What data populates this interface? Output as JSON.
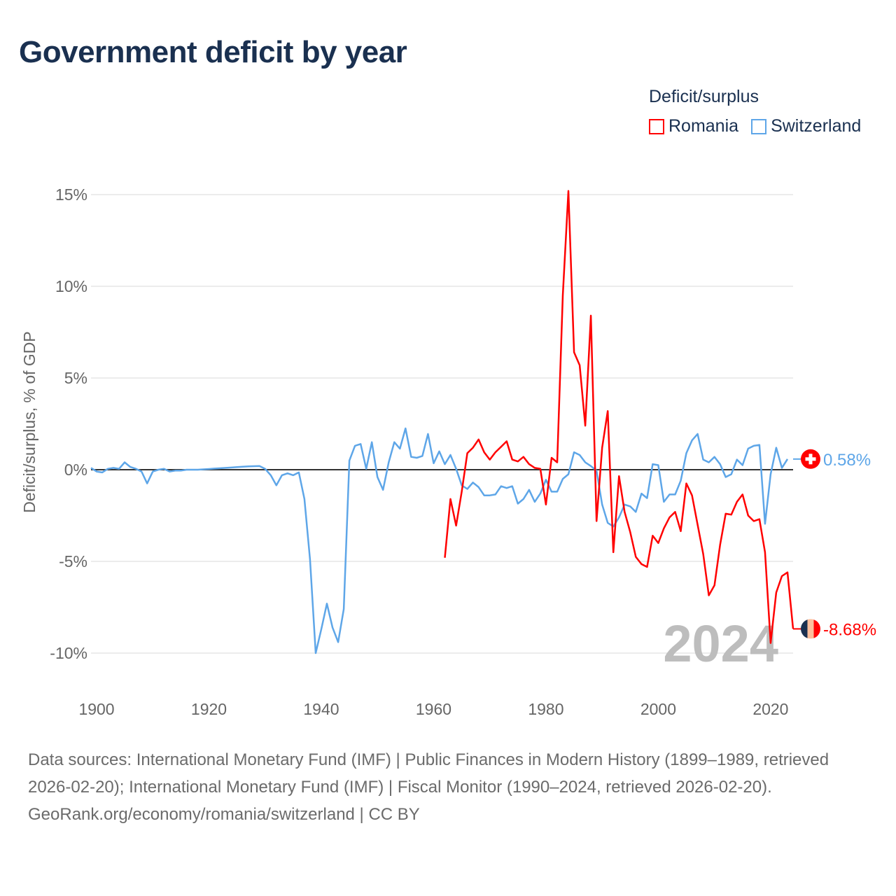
{
  "title": "Government deficit by year",
  "footer": {
    "sources": "Data sources: International Monetary Fund (IMF) | Public Finances in Modern History (1899–1989, retrieved 2026-02-20); International Monetary Fund (IMF) | Fiscal Monitor (1990–2024, retrieved 2026-02-20).",
    "attribution": "GeoRank.org/economy/romania/switzerland | CC BY"
  },
  "chart_data": {
    "type": "line",
    "title": "Government deficit by year",
    "ylabel": "Deficit/surplus, % of GDP",
    "xlabel": "",
    "xlim": [
      1899,
      2024
    ],
    "ylim": [
      -11.5,
      15.5
    ],
    "xticks": [
      1900,
      1920,
      1940,
      1960,
      1980,
      2000,
      2020
    ],
    "xtick_labels": [
      "1900",
      "1920",
      "1940",
      "1960",
      "1980",
      "2000",
      "2020"
    ],
    "yticks": [
      -10,
      -5,
      0,
      5,
      10,
      15
    ],
    "ytick_labels": [
      "-10%",
      "-5%",
      "0%",
      "5%",
      "10%",
      "15%"
    ],
    "grid": true,
    "legend_title": "Deficit/surplus",
    "legend_position": "top-right",
    "year_label": "2024",
    "series": [
      {
        "name": "Romania",
        "color": "#ff0000",
        "end_label": "-8.68%",
        "start_year": 1962,
        "values": [
          -4.8,
          -1.6,
          -3.05,
          -1.2,
          0.9,
          1.2,
          1.65,
          0.95,
          0.55,
          0.95,
          1.25,
          1.55,
          0.55,
          0.45,
          0.7,
          0.3,
          0.1,
          0.05,
          -1.9,
          0.65,
          0.4,
          9.5,
          15.2,
          6.4,
          5.7,
          2.4,
          8.4,
          -2.8,
          1.2,
          3.2,
          -4.5,
          -0.35,
          -2.3,
          -3.4,
          -4.75,
          -5.15,
          -5.3,
          -3.6,
          -4.0,
          -3.2,
          -2.6,
          -2.3,
          -3.35,
          -0.75,
          -1.4,
          -3.0,
          -4.6,
          -6.85,
          -6.3,
          -4.1,
          -2.4,
          -2.45,
          -1.75,
          -1.35,
          -2.5,
          -2.8,
          -2.7,
          -4.5,
          -9.45,
          -6.7,
          -5.8,
          -5.6,
          -8.68
        ]
      },
      {
        "name": "Switzerland",
        "color": "#5ea6e8",
        "end_label": "0.58%",
        "start_year": 1899,
        "values": [
          0.1,
          -0.1,
          -0.15,
          0.05,
          0.1,
          0.05,
          0.4,
          0.15,
          0.05,
          -0.1,
          -0.75,
          -0.1,
          0.0,
          0.05,
          -0.1,
          -0.05,
          -0.05,
          0.0,
          0.0,
          0.0,
          0.02,
          0.04,
          0.06,
          0.08,
          0.1,
          0.12,
          0.14,
          0.16,
          0.18,
          0.19,
          0.2,
          0.05,
          -0.3,
          -0.85,
          -0.3,
          -0.2,
          -0.3,
          -0.15,
          -1.6,
          -4.9,
          -10.0,
          -8.7,
          -7.3,
          -8.6,
          -9.4,
          -7.6,
          0.5,
          1.3,
          1.4,
          0.05,
          1.5,
          -0.4,
          -1.1,
          0.4,
          1.5,
          1.15,
          2.25,
          0.7,
          0.65,
          0.75,
          1.95,
          0.35,
          1.0,
          0.3,
          0.8,
          0.05,
          -0.85,
          -1.05,
          -0.7,
          -0.95,
          -1.4,
          -1.4,
          -1.35,
          -0.9,
          -1.0,
          -0.9,
          -1.85,
          -1.6,
          -1.1,
          -1.75,
          -1.3,
          -0.55,
          -1.2,
          -1.2,
          -0.5,
          -0.25,
          0.95,
          0.8,
          0.4,
          0.2,
          -0.05,
          -1.9,
          -2.9,
          -3.1,
          -2.6,
          -1.9,
          -2.0,
          -2.3,
          -1.3,
          -1.55,
          0.3,
          0.25,
          -1.75,
          -1.35,
          -1.35,
          -0.6,
          0.9,
          1.6,
          1.95,
          0.55,
          0.4,
          0.7,
          0.3,
          -0.4,
          -0.25,
          0.55,
          0.25,
          1.15,
          1.3,
          1.35,
          -2.95,
          -0.25,
          1.2,
          0.1,
          0.58
        ]
      }
    ]
  }
}
